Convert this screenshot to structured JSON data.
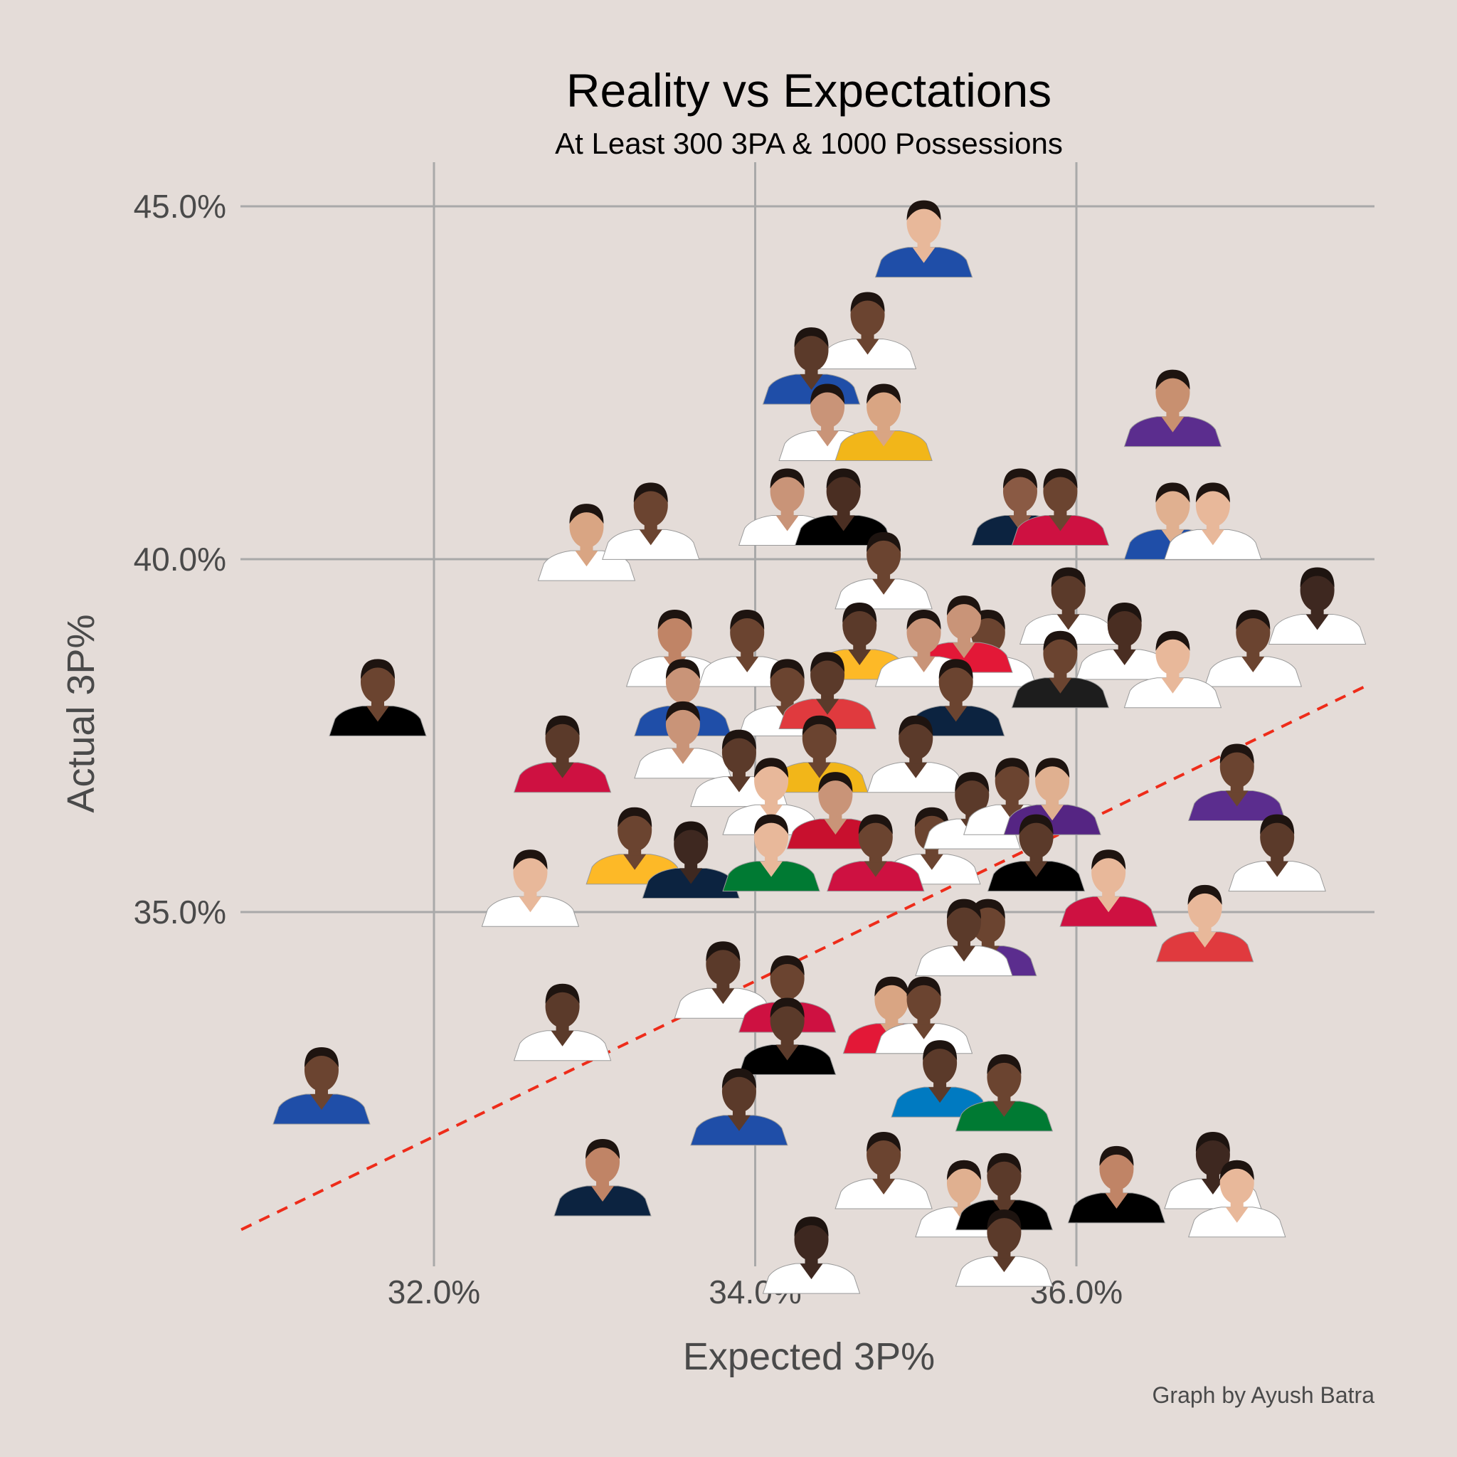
{
  "chart_data": {
    "type": "scatter",
    "title": "Reality vs Expectations",
    "subtitle": "At Least 300 3PA & 1000 Possessions",
    "xlabel": "Expected 3P%",
    "ylabel": "Actual 3P%",
    "caption": "Graph by Ayush Batra",
    "x_ticks": [
      "32.0%",
      "34.0%",
      "36.0%"
    ],
    "x_tick_values": [
      32.0,
      34.0,
      36.0
    ],
    "y_ticks": [
      "35.0%",
      "40.0%",
      "45.0%"
    ],
    "y_tick_values": [
      35.0,
      40.0,
      45.0
    ],
    "xlim": [
      30.8,
      37.8
    ],
    "ylim": [
      29.9,
      45.6
    ],
    "grid": true,
    "marker": "player headshot",
    "reference_line": {
      "style": "dashed",
      "color": "#ee2c1a",
      "x": [
        30.8,
        37.8
      ],
      "y": [
        30.5,
        38.2
      ]
    },
    "points": [
      {
        "x": 35.05,
        "y": 44.5,
        "jersey": "#1f4ea8",
        "skin": "#e8b89a"
      },
      {
        "x": 34.7,
        "y": 43.2,
        "jersey": "#ffffff",
        "skin": "#6b4430"
      },
      {
        "x": 34.35,
        "y": 42.7,
        "jersey": "#1f4ea8",
        "skin": "#5b3a2a"
      },
      {
        "x": 34.45,
        "y": 41.9,
        "jersey": "#ffffff",
        "skin": "#c99478"
      },
      {
        "x": 34.8,
        "y": 41.9,
        "jersey": "#f2b619",
        "skin": "#d9a583"
      },
      {
        "x": 36.6,
        "y": 42.1,
        "jersey": "#5b2d8e",
        "skin": "#c89070"
      },
      {
        "x": 34.2,
        "y": 40.7,
        "jersey": "#ffffff",
        "skin": "#c99478"
      },
      {
        "x": 34.55,
        "y": 40.7,
        "jersey": "#000000",
        "skin": "#4a2e22"
      },
      {
        "x": 35.65,
        "y": 40.7,
        "jersey": "#0c2340",
        "skin": "#8a5a44"
      },
      {
        "x": 35.9,
        "y": 40.7,
        "jersey": "#ce1141",
        "skin": "#6b4430"
      },
      {
        "x": 36.6,
        "y": 40.5,
        "jersey": "#1f4ea8",
        "skin": "#e0b090"
      },
      {
        "x": 36.85,
        "y": 40.5,
        "jersey": "#ffffff",
        "skin": "#e8b89a"
      },
      {
        "x": 32.95,
        "y": 40.2,
        "jersey": "#ffffff",
        "skin": "#d9a583"
      },
      {
        "x": 33.35,
        "y": 40.5,
        "jersey": "#ffffff",
        "skin": "#6b4430"
      },
      {
        "x": 34.8,
        "y": 39.8,
        "jersey": "#ffffff",
        "skin": "#6b4430"
      },
      {
        "x": 37.5,
        "y": 39.3,
        "jersey": "#ffffff",
        "skin": "#3e2820"
      },
      {
        "x": 35.95,
        "y": 39.3,
        "jersey": "#ffffff",
        "skin": "#5b3a2a"
      },
      {
        "x": 35.45,
        "y": 38.7,
        "jersey": "#ffffff",
        "skin": "#6b4430"
      },
      {
        "x": 35.3,
        "y": 38.9,
        "jersey": "#e31837",
        "skin": "#c99478"
      },
      {
        "x": 36.3,
        "y": 38.8,
        "jersey": "#ffffff",
        "skin": "#4a2e22"
      },
      {
        "x": 37.1,
        "y": 38.7,
        "jersey": "#ffffff",
        "skin": "#6b4430"
      },
      {
        "x": 33.5,
        "y": 38.7,
        "jersey": "#ffffff",
        "skin": "#c08466"
      },
      {
        "x": 33.95,
        "y": 38.7,
        "jersey": "#ffffff",
        "skin": "#6b4430"
      },
      {
        "x": 34.65,
        "y": 38.8,
        "jersey": "#fdb927",
        "skin": "#5b3a2a"
      },
      {
        "x": 35.05,
        "y": 38.7,
        "jersey": "#ffffff",
        "skin": "#c99478"
      },
      {
        "x": 36.6,
        "y": 38.4,
        "jersey": "#ffffff",
        "skin": "#e8b89a"
      },
      {
        "x": 35.9,
        "y": 38.4,
        "jersey": "#1d1d1d",
        "skin": "#6b4430"
      },
      {
        "x": 31.65,
        "y": 38.0,
        "jersey": "#000000",
        "skin": "#6b4430"
      },
      {
        "x": 33.55,
        "y": 38.0,
        "jersey": "#1f4ea8",
        "skin": "#c99478"
      },
      {
        "x": 34.2,
        "y": 38.0,
        "jersey": "#ffffff",
        "skin": "#6b4430"
      },
      {
        "x": 34.45,
        "y": 38.1,
        "jersey": "#e03a3e",
        "skin": "#5b3a2a"
      },
      {
        "x": 35.25,
        "y": 38.0,
        "jersey": "#0c2340",
        "skin": "#6b4430"
      },
      {
        "x": 32.8,
        "y": 37.2,
        "jersey": "#ce1141",
        "skin": "#5b3a2a"
      },
      {
        "x": 33.55,
        "y": 37.4,
        "jersey": "#ffffff",
        "skin": "#c99478"
      },
      {
        "x": 33.9,
        "y": 37.0,
        "jersey": "#ffffff",
        "skin": "#5b3a2a"
      },
      {
        "x": 34.4,
        "y": 37.2,
        "jersey": "#f2b619",
        "skin": "#6b4430"
      },
      {
        "x": 35.0,
        "y": 37.2,
        "jersey": "#ffffff",
        "skin": "#5b3a2a"
      },
      {
        "x": 34.1,
        "y": 36.6,
        "jersey": "#ffffff",
        "skin": "#e8b89a"
      },
      {
        "x": 34.5,
        "y": 36.4,
        "jersey": "#c8102e",
        "skin": "#c99478"
      },
      {
        "x": 35.1,
        "y": 35.9,
        "jersey": "#ffffff",
        "skin": "#6b4430"
      },
      {
        "x": 35.35,
        "y": 36.4,
        "jersey": "#ffffff",
        "skin": "#5b3a2a"
      },
      {
        "x": 35.6,
        "y": 36.6,
        "jersey": "#ffffff",
        "skin": "#6b4430"
      },
      {
        "x": 35.85,
        "y": 36.6,
        "jersey": "#552583",
        "skin": "#e0b090"
      },
      {
        "x": 37.0,
        "y": 36.8,
        "jersey": "#5b2d8e",
        "skin": "#6b4430"
      },
      {
        "x": 37.25,
        "y": 35.8,
        "jersey": "#ffffff",
        "skin": "#5b3a2a"
      },
      {
        "x": 33.25,
        "y": 35.9,
        "jersey": "#fdb927",
        "skin": "#6b4430"
      },
      {
        "x": 33.6,
        "y": 35.7,
        "jersey": "#0c2340",
        "skin": "#3e2820"
      },
      {
        "x": 34.1,
        "y": 35.8,
        "jersey": "#007a33",
        "skin": "#e8b89a"
      },
      {
        "x": 34.75,
        "y": 35.8,
        "jersey": "#ce1141",
        "skin": "#6b4430"
      },
      {
        "x": 35.75,
        "y": 35.8,
        "jersey": "#000000",
        "skin": "#5b3a2a"
      },
      {
        "x": 36.2,
        "y": 35.3,
        "jersey": "#ce1141",
        "skin": "#e8b89a"
      },
      {
        "x": 36.8,
        "y": 34.8,
        "jersey": "#e03a3e",
        "skin": "#e8b89a"
      },
      {
        "x": 32.6,
        "y": 35.3,
        "jersey": "#ffffff",
        "skin": "#e8b89a"
      },
      {
        "x": 35.45,
        "y": 34.6,
        "jersey": "#5b2d8e",
        "skin": "#6b4430"
      },
      {
        "x": 35.3,
        "y": 34.6,
        "jersey": "#ffffff",
        "skin": "#5b3a2a"
      },
      {
        "x": 33.8,
        "y": 34.0,
        "jersey": "#ffffff",
        "skin": "#5b3a2a"
      },
      {
        "x": 34.2,
        "y": 33.8,
        "jersey": "#ce1141",
        "skin": "#6b4430"
      },
      {
        "x": 34.2,
        "y": 33.2,
        "jersey": "#000000",
        "skin": "#5b3a2a"
      },
      {
        "x": 32.8,
        "y": 33.4,
        "jersey": "#ffffff",
        "skin": "#5b3a2a"
      },
      {
        "x": 34.85,
        "y": 33.5,
        "jersey": "#e31837",
        "skin": "#d9a583"
      },
      {
        "x": 35.05,
        "y": 33.5,
        "jersey": "#ffffff",
        "skin": "#6b4430"
      },
      {
        "x": 35.15,
        "y": 32.6,
        "jersey": "#007ac1",
        "skin": "#5b3a2a"
      },
      {
        "x": 35.55,
        "y": 32.4,
        "jersey": "#007a33",
        "skin": "#6b4430"
      },
      {
        "x": 31.3,
        "y": 32.5,
        "jersey": "#1f4ea8",
        "skin": "#6b4430"
      },
      {
        "x": 33.9,
        "y": 32.2,
        "jersey": "#1f4ea8",
        "skin": "#5b3a2a"
      },
      {
        "x": 33.05,
        "y": 31.2,
        "jersey": "#0c2340",
        "skin": "#c08466"
      },
      {
        "x": 34.8,
        "y": 31.3,
        "jersey": "#ffffff",
        "skin": "#6b4430"
      },
      {
        "x": 35.3,
        "y": 30.9,
        "jersey": "#ffffff",
        "skin": "#e0b090"
      },
      {
        "x": 35.55,
        "y": 31.0,
        "jersey": "#000000",
        "skin": "#5b3a2a"
      },
      {
        "x": 36.25,
        "y": 31.1,
        "jersey": "#000000",
        "skin": "#c08466"
      },
      {
        "x": 36.85,
        "y": 31.3,
        "jersey": "#ffffff",
        "skin": "#3e2820"
      },
      {
        "x": 37.0,
        "y": 30.9,
        "jersey": "#ffffff",
        "skin": "#e8b89a"
      },
      {
        "x": 35.55,
        "y": 30.2,
        "jersey": "#ffffff",
        "skin": "#5b3a2a"
      },
      {
        "x": 34.35,
        "y": 30.1,
        "jersey": "#ffffff",
        "skin": "#3e2820"
      }
    ]
  }
}
